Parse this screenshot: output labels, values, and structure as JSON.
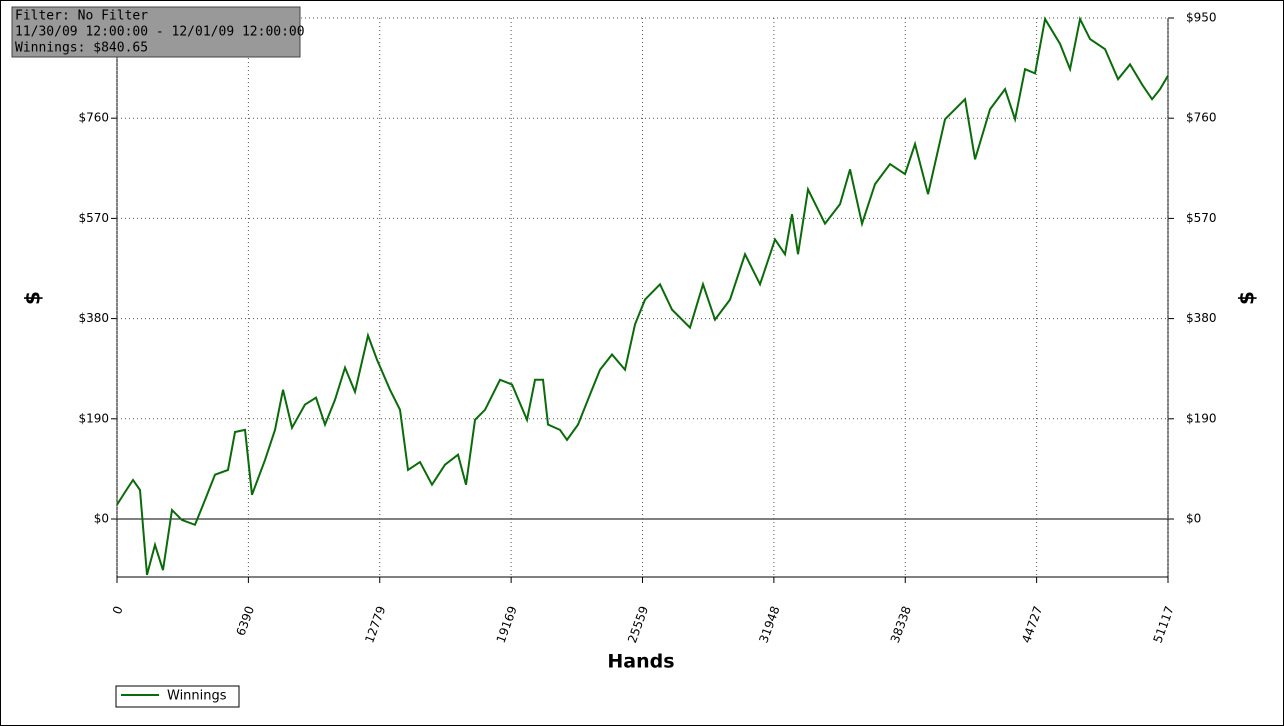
{
  "info": {
    "filter": "Filter: No Filter",
    "range": "11/30/09 12:00:00 - 12/01/09 12:00:00",
    "winnings": "Winnings: $840.65"
  },
  "chart_data": {
    "type": "line",
    "xlabel": "Hands",
    "ylabel": "$",
    "xlim": [
      0,
      51117
    ],
    "xticks": [
      0,
      6390,
      12779,
      19169,
      25559,
      31948,
      38338,
      44727,
      51117
    ],
    "ylim": [
      -110,
      950
    ],
    "yticks": [
      {
        "value": 0,
        "label": "$0"
      },
      {
        "value": 190,
        "label": "$190"
      },
      {
        "value": 380,
        "label": "$380"
      },
      {
        "value": 570,
        "label": "$570"
      },
      {
        "value": 760,
        "label": "$760"
      },
      {
        "value": 950,
        "label": "$950"
      }
    ],
    "grid": true,
    "legend": "bottom-left",
    "x": [
      0,
      389,
      778,
      1119,
      1459,
      1848,
      2237,
      2675,
      3161,
      3794,
      4280,
      4767,
      5399,
      5740,
      6226,
      6566,
      7199,
      7685,
      8074,
      8512,
      9144,
      9679,
      10117,
      10603,
      11090,
      11576,
      12208,
      12646,
      13279,
      13765,
      14154,
      14737,
      15321,
      15953,
      16586,
      16975,
      17413,
      17899,
      18629,
      19213,
      19942,
      20331,
      20720,
      20963,
      21547,
      21887,
      22422,
      23006,
      23492,
      24076,
      24708,
      25194,
      25681,
      26410,
      26994,
      27869,
      28502,
      29085,
      29815,
      30545,
      31274,
      32004,
      32490,
      32830,
      33122,
      33609,
      34436,
      35165,
      35652,
      36236,
      36868,
      37597,
      38327,
      38813,
      39446,
      40273,
      41246,
      41732,
      42462,
      43191,
      43678,
      44164,
      44650,
      45137,
      45866,
      46353,
      46839,
      47326,
      48055,
      48688,
      49271,
      49855,
      50342,
      50731,
      51117
    ],
    "series": [
      {
        "name": "Winnings",
        "color": "#0b6b0b",
        "values": [
          27,
          51,
          74,
          55,
          -106,
          -49,
          -97,
          17,
          -2,
          -11,
          36,
          84,
          93,
          165,
          169,
          46,
          112,
          169,
          245,
          173,
          217,
          230,
          179,
          226,
          287,
          241,
          348,
          302,
          245,
          207,
          93,
          108,
          65,
          103,
          122,
          65,
          188,
          207,
          264,
          255,
          188,
          264,
          264,
          179,
          169,
          150,
          179,
          236,
          283,
          312,
          283,
          369,
          416,
          445,
          397,
          363,
          445,
          378,
          416,
          502,
          445,
          530,
          502,
          578,
          502,
          625,
          560,
          597,
          663,
          560,
          635,
          673,
          654,
          711,
          616,
          758,
          796,
          682,
          777,
          815,
          758,
          853,
          845,
          948,
          901,
          853,
          948,
          910,
          891,
          834,
          862,
          824,
          796,
          815,
          840.65
        ]
      }
    ]
  }
}
